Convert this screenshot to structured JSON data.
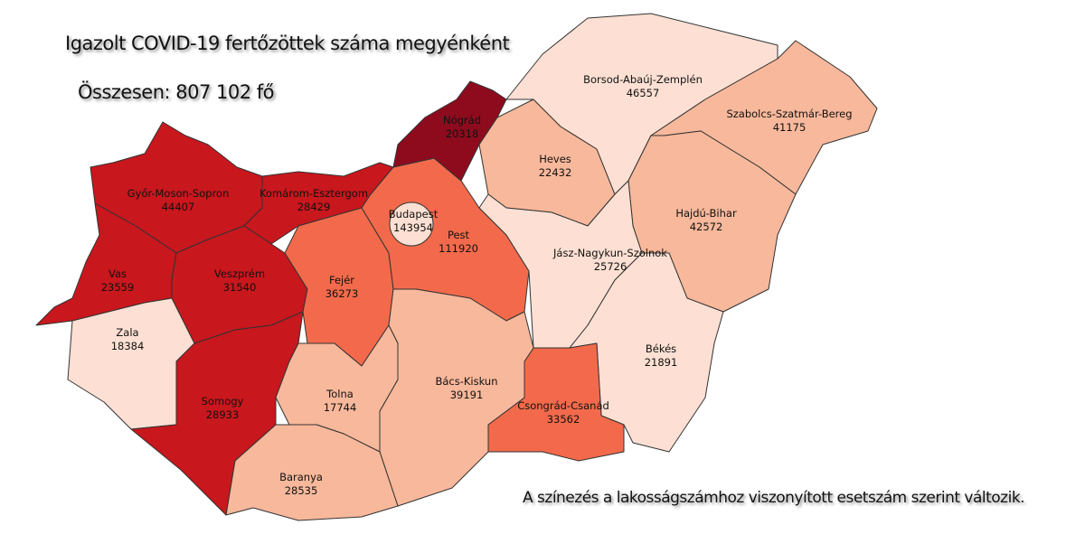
{
  "title": "Igazolt COVID-19 fertőzöttek száma megyénként",
  "total": "Összesen: 807 102 fő",
  "note": "A színezés a lakosságszámhoz viszonyított esetszám szerint változik.",
  "colors": {
    "darkest": "#8e0b1e",
    "dark": "#c8171d",
    "mid": "#f26a4b",
    "light": "#f8b89b",
    "lightest": "#fde0d3",
    "border": "#333333"
  },
  "counties": [
    {
      "name": "Győr-Moson-Sopron",
      "value": "44407",
      "level": "dark"
    },
    {
      "name": "Komárom-Esztergom",
      "value": "28429",
      "level": "dark"
    },
    {
      "name": "Vas",
      "value": "23559",
      "level": "dark"
    },
    {
      "name": "Veszprém",
      "value": "31540",
      "level": "dark"
    },
    {
      "name": "Zala",
      "value": "18384",
      "level": "lightest"
    },
    {
      "name": "Somogy",
      "value": "28933",
      "level": "dark"
    },
    {
      "name": "Fejér",
      "value": "36273",
      "level": "mid"
    },
    {
      "name": "Pest",
      "value": "111920",
      "level": "mid"
    },
    {
      "name": "Budapest",
      "value": "143954",
      "level": "lightest"
    },
    {
      "name": "Nógrád",
      "value": "20318",
      "level": "darkest"
    },
    {
      "name": "Heves",
      "value": "22432",
      "level": "light"
    },
    {
      "name": "Borsod-Abaúj-Zemplén",
      "value": "46557",
      "level": "lightest"
    },
    {
      "name": "Szabolcs-Szatmár-Bereg",
      "value": "41175",
      "level": "light"
    },
    {
      "name": "Hajdú-Bihar",
      "value": "42572",
      "level": "light"
    },
    {
      "name": "Jász-Nagykun-Szolnok",
      "value": "25726",
      "level": "lightest"
    },
    {
      "name": "Békés",
      "value": "21891",
      "level": "lightest"
    },
    {
      "name": "Csongrád-Csanád",
      "value": "33562",
      "level": "mid"
    },
    {
      "name": "Bács-Kiskun",
      "value": "39191",
      "level": "light"
    },
    {
      "name": "Tolna",
      "value": "17744",
      "level": "light"
    },
    {
      "name": "Baranya",
      "value": "28535",
      "level": "light"
    }
  ]
}
